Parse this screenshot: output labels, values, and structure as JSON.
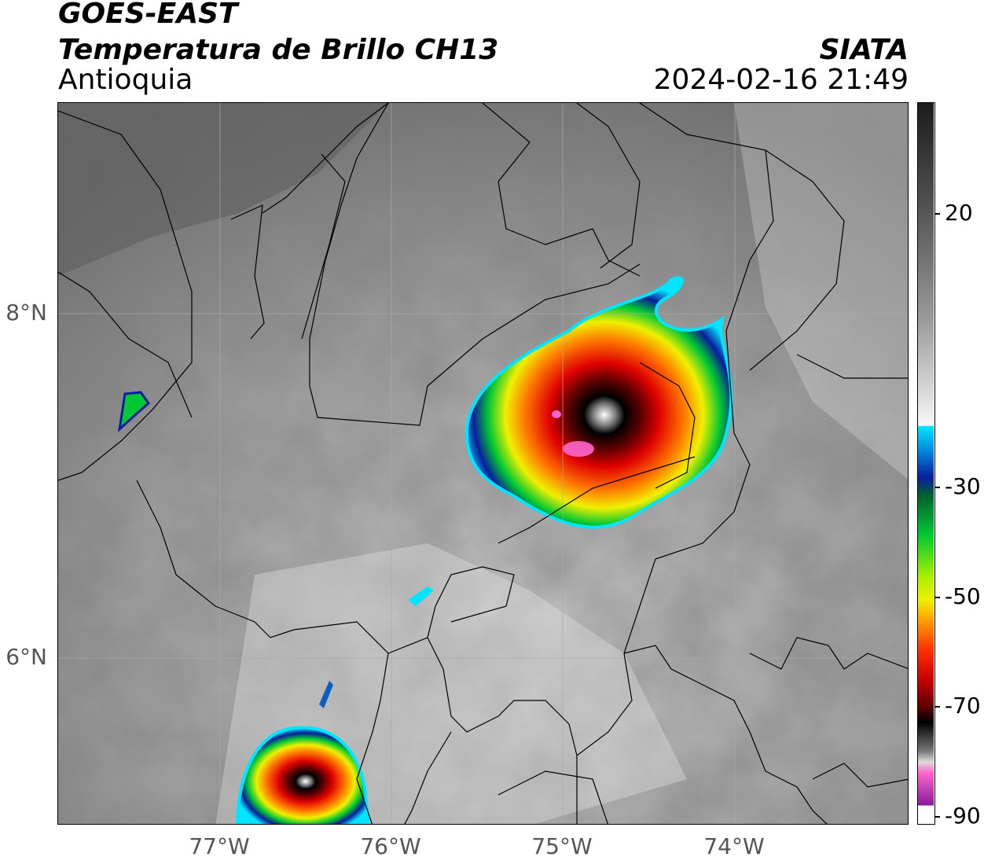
{
  "header": {
    "satellite": "GOES-EAST",
    "product": "Temperatura de Brillo CH13",
    "region": "Antioquia",
    "organization": "SIATA",
    "timestamp": "2024-02-16 21:49"
  },
  "map": {
    "x_ticks": [
      "77°W",
      "76°W",
      "75°W",
      "74°W"
    ],
    "y_ticks": [
      "8°N",
      "6°N"
    ],
    "extent": {
      "lon": [
        -77.95,
        -73.05
      ],
      "lat": [
        5.0,
        9.2
      ]
    }
  },
  "colorbar": {
    "ticks": [
      "20",
      "-30",
      "-50",
      "-70",
      "-90"
    ],
    "range": [
      -92,
      38
    ],
    "colors": {
      "warm_high": "#1c1c1c",
      "warm_low": "#f4f4f4",
      "cyan": "#00e5ff",
      "blue": "#0a1e9c",
      "green": "#00c832",
      "yellow": "#f0f000",
      "orange": "#ff7a00",
      "red": "#e00000",
      "darkred": "#5a0000",
      "black": "#000000",
      "pink": "#ff66cc",
      "purple": "#8a1a9c"
    }
  }
}
